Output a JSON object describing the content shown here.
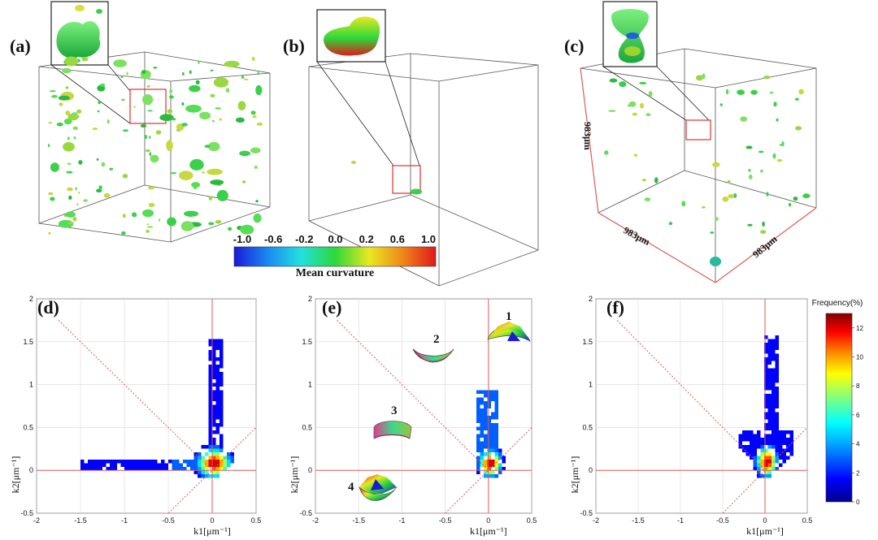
{
  "panels": {
    "a": {
      "label": "(a)"
    },
    "b": {
      "label": "(b)"
    },
    "c": {
      "label": "(c)",
      "dim_vertical": "983μm",
      "dim_bottom_left": "983μm",
      "dim_bottom_right": "983μm"
    },
    "d": {
      "label": "(d)"
    },
    "e": {
      "label": "(e)",
      "shape_labels": [
        "1",
        "2",
        "3",
        "4"
      ]
    },
    "f": {
      "label": "(f)"
    }
  },
  "curvature_colorbar": {
    "ticks": [
      "-1.0",
      "-0.6",
      "-0.2",
      "0.0",
      "0.2",
      "0.6",
      "1.0"
    ],
    "title": "Mean curvature",
    "colors": [
      "#1a1ad8",
      "#1a8cf0",
      "#22e0e0",
      "#2bd93a",
      "#e8e820",
      "#f08a1a",
      "#e01a1a"
    ]
  },
  "frequency_colorbar": {
    "title": "Frequency(%)",
    "ticks": [
      "0",
      "2",
      "4",
      "6",
      "8",
      "10",
      "12"
    ],
    "range": [
      0,
      13
    ],
    "colors": [
      "#00008f",
      "#0000ff",
      "#00a0ff",
      "#00ffff",
      "#80ff80",
      "#ffff00",
      "#ff8000",
      "#ff0000",
      "#800000"
    ]
  },
  "chart_data": [
    {
      "type": "heatmap",
      "panel": "(d)",
      "xlabel": "k1[μm⁻¹]",
      "ylabel": "k2[μm⁻¹]",
      "xlim": [
        -2,
        0.5
      ],
      "ylim": [
        -0.5,
        2
      ],
      "xticks": [
        "-2",
        "-1.5",
        "-1",
        "-0.5",
        "0",
        "0.5"
      ],
      "yticks": [
        "-0.5",
        "0",
        "0.5",
        "1",
        "1.5",
        "2"
      ],
      "grid": true,
      "reference_lines": [
        "k1 = 0",
        "k2 = 0",
        "k2 = k1",
        "k2 = -k1"
      ]
    },
    {
      "type": "heatmap",
      "panel": "(e)",
      "xlabel": "k1[μm⁻¹]",
      "ylabel": "k2[μm⁻¹]",
      "xlim": [
        -2,
        0.5
      ],
      "ylim": [
        -0.5,
        2
      ],
      "xticks": [
        "-2",
        "-1.5",
        "-1",
        "-0.5",
        "0",
        "0.5"
      ],
      "yticks": [
        "-0.5",
        "0",
        "0.5",
        "1",
        "1.5",
        "2"
      ],
      "grid": true,
      "reference_lines": [
        "k1 = 0",
        "k2 = 0",
        "k2 = k1",
        "k2 = -k1"
      ]
    },
    {
      "type": "heatmap",
      "panel": "(f)",
      "xlabel": "k1[μm⁻¹]",
      "ylabel": "k2[μm⁻¹]",
      "xlim": [
        -2,
        0.5
      ],
      "ylim": [
        -0.5,
        2
      ],
      "xticks": [
        "-2",
        "-1.5",
        "-1",
        "-0.5",
        "0",
        "0.5"
      ],
      "yticks": [
        "-0.5",
        "0",
        "0.5",
        "1",
        "1.5",
        "2"
      ],
      "grid": true,
      "reference_lines": [
        "k1 = 0",
        "k2 = 0",
        "k2 = k1",
        "k2 = -k1"
      ]
    }
  ]
}
